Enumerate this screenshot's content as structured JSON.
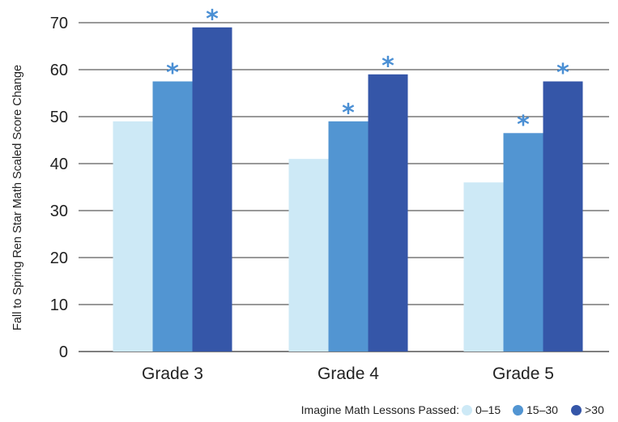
{
  "chart_data": {
    "type": "bar",
    "categories": [
      "Grade 3",
      "Grade 4",
      "Grade 5"
    ],
    "series": [
      {
        "name": "0–15",
        "values": [
          49,
          41,
          36
        ],
        "color": "#cde9f6",
        "significant": [
          false,
          false,
          false
        ]
      },
      {
        "name": "15–30",
        "values": [
          57.5,
          49,
          46.5
        ],
        "color": "#5295d2",
        "significant": [
          true,
          true,
          true
        ]
      },
      {
        "name": ">30",
        "values": [
          69,
          59,
          57.5
        ],
        "color": "#3556a8",
        "significant": [
          true,
          true,
          true
        ]
      }
    ],
    "title": "",
    "xlabel": "",
    "ylabel": "Fall to Spring Ren Star Math Scaled Score Change",
    "ylim": [
      0,
      70
    ],
    "yticks": [
      "0",
      "10",
      "20",
      "30",
      "40",
      "50",
      "60",
      "70"
    ],
    "grid": true,
    "significance_marker": "*",
    "significance_color": "#4a8fd4",
    "legend": {
      "title": "Imagine Math Lessons Passed:",
      "placement": "bottom-right"
    }
  }
}
